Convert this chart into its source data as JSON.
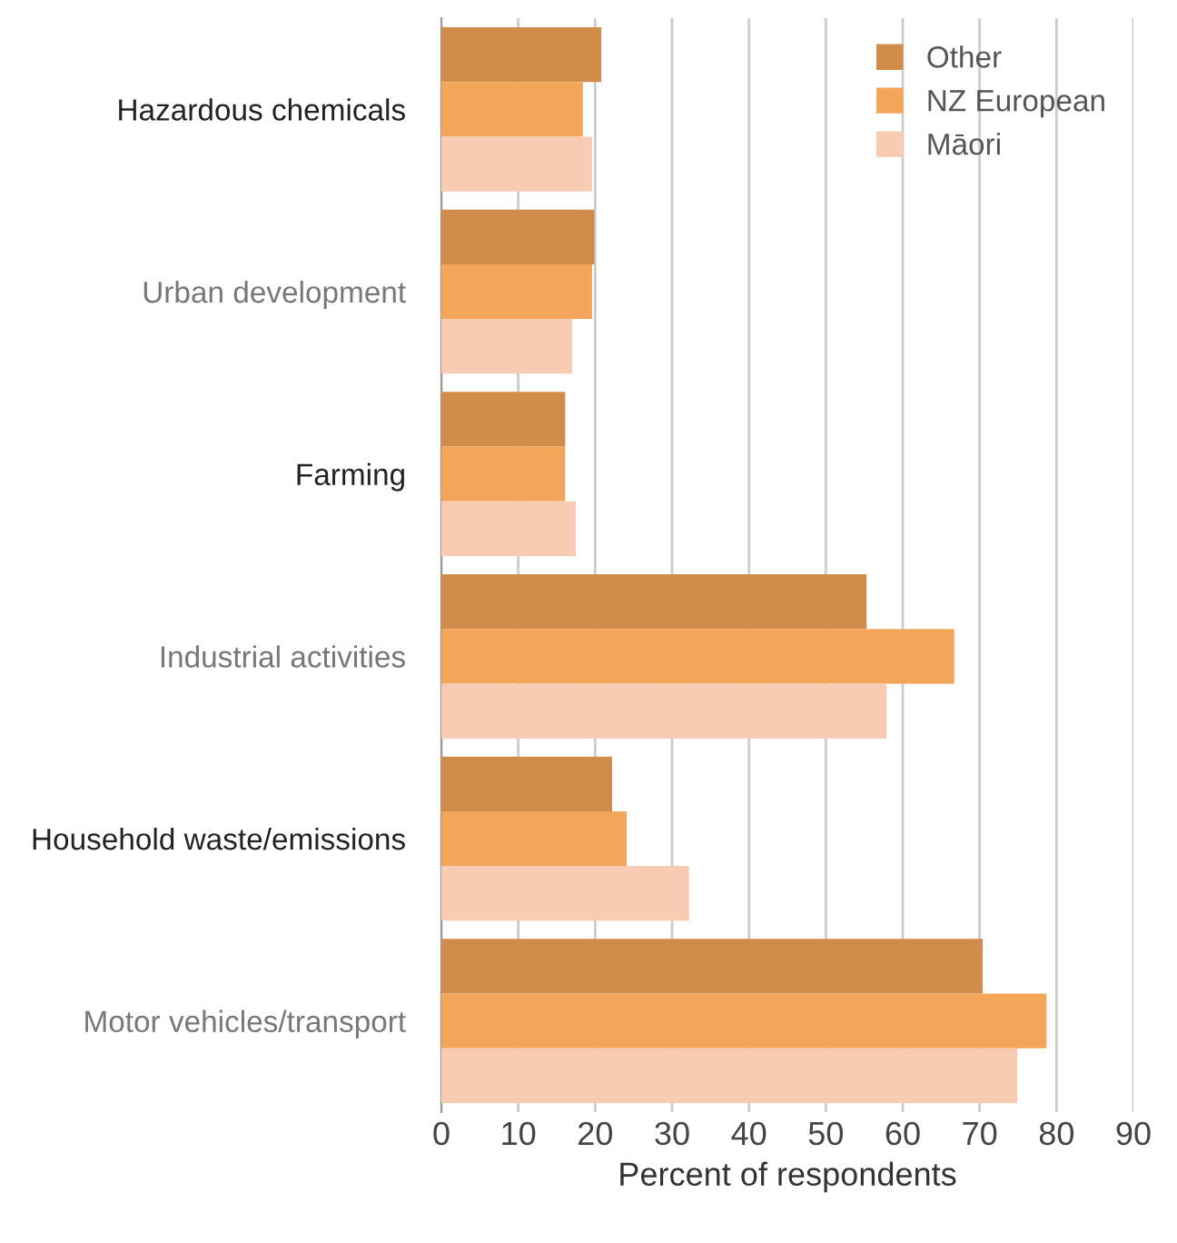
{
  "chart_data": {
    "type": "bar",
    "orientation": "horizontal",
    "xlabel": "Percent of respondents",
    "categories": [
      "Hazardous chemicals",
      "Urban development",
      "Farming",
      "Industrial activities",
      "Household waste/emissions",
      "Motor vehicles/transport"
    ],
    "series": [
      {
        "name": "Other",
        "color": "#d18b4b",
        "values": [
          20.8,
          19.9,
          16.1,
          55.3,
          22.2,
          70.4
        ]
      },
      {
        "name": "NZ European",
        "color": "#f3a65a",
        "values": [
          18.4,
          19.6,
          16.1,
          66.7,
          24.1,
          78.7
        ]
      },
      {
        "name": "Māori",
        "color": "#f8cbb3",
        "values": [
          19.6,
          17.0,
          17.5,
          57.9,
          32.2,
          74.9
        ]
      }
    ],
    "xlim": [
      0,
      90
    ],
    "xticks": [
      0,
      10,
      20,
      30,
      40,
      50,
      60,
      70,
      80,
      90
    ],
    "grid": "x",
    "legend": "top right"
  }
}
